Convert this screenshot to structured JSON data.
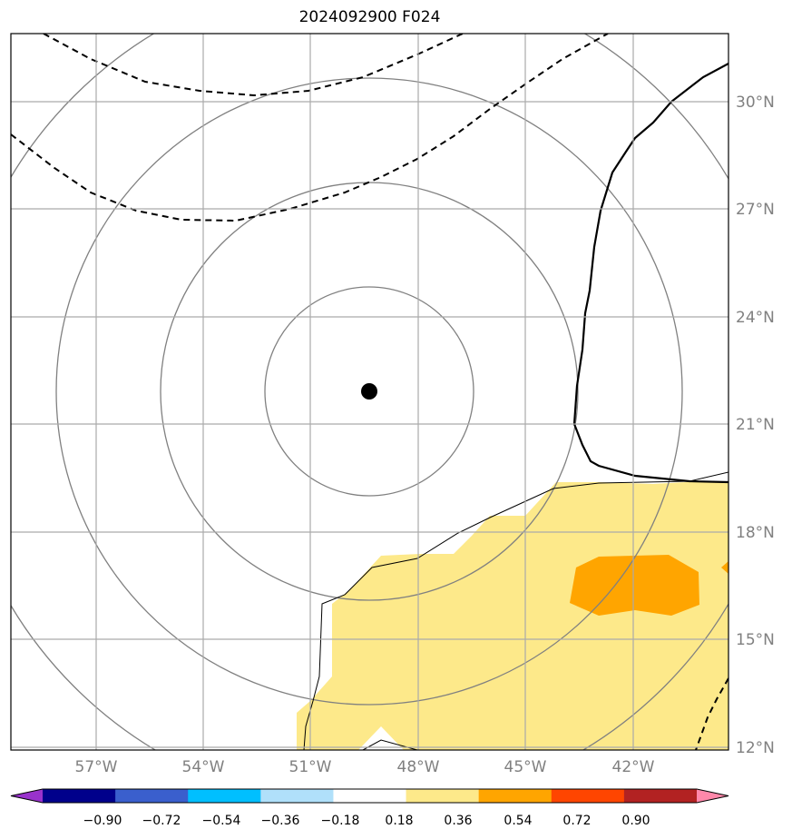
{
  "title": "2024092900 F024",
  "map": {
    "lon_labels": [
      "57°W",
      "54°W",
      "51°W",
      "48°W",
      "45°W",
      "42°W"
    ],
    "lat_labels": [
      "30°N",
      "27°N",
      "24°N",
      "21°N",
      "18°N",
      "15°N",
      "12°N"
    ],
    "center_marker": "storm-center",
    "colors": {
      "fill_light": "#fde98a",
      "fill_orange": "#ffa500",
      "isoline": "#808080",
      "contour": "#000000"
    }
  },
  "colorbar": {
    "ticks": [
      "−0.90",
      "−0.72",
      "−0.54",
      "−0.36",
      "−0.18",
      "0.18",
      "0.36",
      "0.54",
      "0.72",
      "0.90"
    ],
    "colors": [
      "#9932cc",
      "#00008b",
      "#3a5fcd",
      "#00bfff",
      "#b0e0fa",
      "#ffffff",
      "#fde98a",
      "#ffa500",
      "#ff4500",
      "#b22222",
      "#ff88aa"
    ]
  }
}
